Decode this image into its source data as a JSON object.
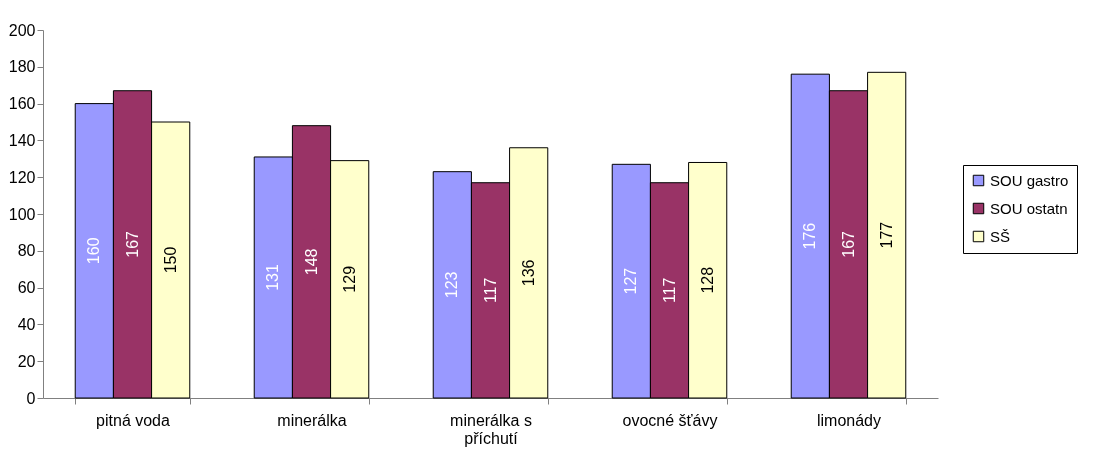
{
  "chart_data": {
    "type": "bar",
    "categories": [
      "pitná voda",
      "minerálka",
      "minerálka s příchutí",
      "ovocné šťávy",
      "limonády"
    ],
    "series": [
      {
        "name": "SOU gastro",
        "color": "#9999ff",
        "values": [
          160,
          131,
          123,
          127,
          176
        ]
      },
      {
        "name": "SOU ostatn",
        "color": "#993366",
        "values": [
          167,
          148,
          117,
          117,
          167
        ]
      },
      {
        "name": "SŠ",
        "color": "#ffffcc",
        "values": [
          150,
          129,
          136,
          128,
          177
        ]
      }
    ],
    "ylim": [
      0,
      200
    ],
    "yticks": [
      0,
      20,
      40,
      60,
      80,
      100,
      120,
      140,
      160,
      180,
      200
    ],
    "grid": false,
    "legend": "right",
    "data_labels": true
  }
}
